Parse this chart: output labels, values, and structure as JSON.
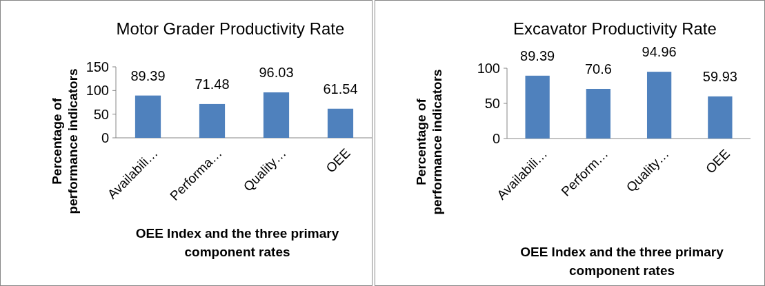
{
  "chart_data": [
    {
      "type": "bar",
      "title": "Motor Grader Productivity Rate",
      "xlabel": "OEE Index and the three primary component rates",
      "ylabel": "Percentage of performance indicators",
      "categories": [
        "Availabili…",
        "Performa…",
        "Quality…",
        "OEE"
      ],
      "values": [
        89.39,
        71.48,
        96.03,
        61.54
      ],
      "color": "#4f81bd",
      "ylim": [
        0,
        150
      ],
      "yticks": [
        0,
        50,
        100,
        150
      ],
      "data_labels": true,
      "grid": false
    },
    {
      "type": "bar",
      "title": "Excavator Productivity Rate",
      "xlabel": "OEE Index and the three primary component rates",
      "ylabel": "Percentage of performance indicators",
      "categories": [
        "Availabili…",
        "Perform…",
        "Quality…",
        "OEE"
      ],
      "values": [
        89.39,
        70.6,
        94.96,
        59.93
      ],
      "color": "#4f81bd",
      "ylim": [
        0,
        100
      ],
      "yticks": [
        0,
        50,
        100
      ],
      "data_labels": true,
      "grid": false
    }
  ]
}
